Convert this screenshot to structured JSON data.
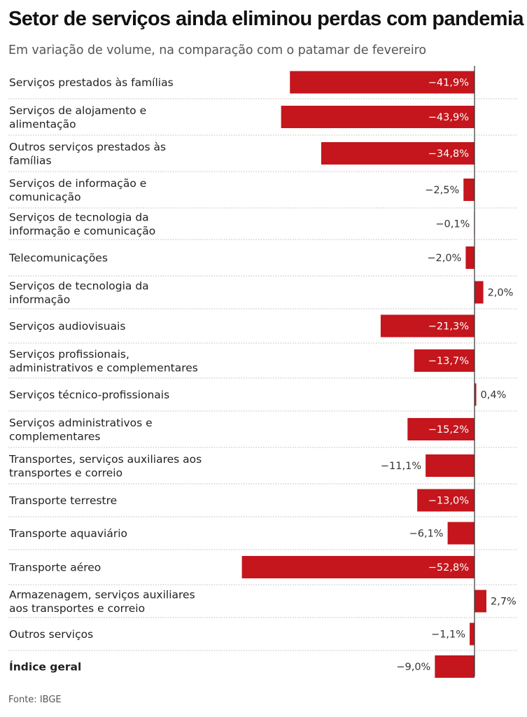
{
  "title": "Setor de serviços ainda eliminou perdas com pandemia",
  "subtitle": "Em variação de volume, na comparação com o patamar de fevereiro",
  "source": "Fonte: IBGE",
  "colors": {
    "bar": "#c4161c",
    "zero_line": "#333333",
    "separator": "#bbbbbb"
  },
  "chart_data": {
    "type": "bar",
    "orientation": "horizontal",
    "unit": "%",
    "xlim": [
      -56,
      4
    ],
    "categories": [
      [
        "Serviços prestados às famílias"
      ],
      [
        "Serviços de alojamento e",
        "alimentação"
      ],
      [
        "Outros serviços prestados às",
        "famílias"
      ],
      [
        "Serviços de informação e",
        "comunicação"
      ],
      [
        "Serviços de tecnologia da",
        "informação e comunicação"
      ],
      [
        "Telecomunicações"
      ],
      [
        "Serviços de tecnologia da",
        "informação"
      ],
      [
        "Serviços audiovisuais"
      ],
      [
        "Serviços profissionais,",
        "administrativos e complementares"
      ],
      [
        "Serviços técnico-profissionais"
      ],
      [
        "Serviços administrativos e",
        "complementares"
      ],
      [
        "Transportes, serviços auxiliares aos",
        "transportes e correio"
      ],
      [
        "Transporte terrestre"
      ],
      [
        "Transporte aquaviário"
      ],
      [
        "Transporte aéreo"
      ],
      [
        "Armazenagem, serviços auxiliares",
        "aos transportes e correio"
      ],
      [
        "Outros serviços"
      ],
      [
        "Índice geral"
      ]
    ],
    "values": [
      -41.9,
      -43.9,
      -34.8,
      -2.5,
      -0.1,
      -2.0,
      2.0,
      -21.3,
      -13.7,
      0.4,
      -15.2,
      -11.1,
      -13.0,
      -6.1,
      -52.8,
      2.7,
      -1.1,
      -9.0
    ],
    "labels": [
      "−41,9%",
      "−43,9%",
      "−34,8%",
      "−2,5%",
      "−0,1%",
      "−2,0%",
      "2,0%",
      "−21,3%",
      "−13,7%",
      "0,4%",
      "−15,2%",
      "−11,1%",
      "−13,0%",
      "−6,1%",
      "−52,8%",
      "2,7%",
      "−1,1%",
      "−9,0%"
    ],
    "bold_categories": [
      "Índice geral"
    ]
  }
}
